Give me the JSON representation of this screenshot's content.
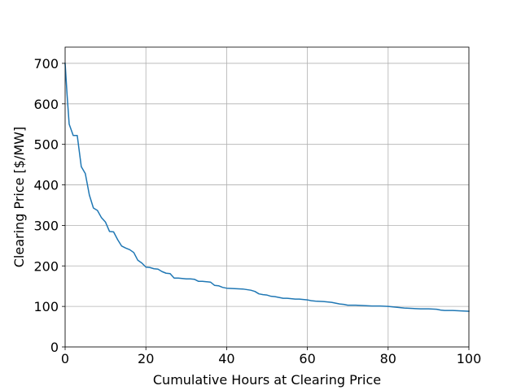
{
  "chart_data": {
    "type": "line",
    "title": "",
    "xlabel": "Cumulative Hours at Clearing Price",
    "ylabel": "Clearing Price [$/MW]",
    "xlim": [
      0,
      100
    ],
    "ylim": [
      0,
      740
    ],
    "x_ticks": [
      0,
      20,
      40,
      60,
      80,
      100
    ],
    "y_ticks": [
      0,
      100,
      200,
      300,
      400,
      500,
      600,
      700
    ],
    "grid": true,
    "legend": "none",
    "series": [
      {
        "color": "#1f77b4",
        "x": [
          0,
          0.5,
          1,
          2,
          3,
          4,
          5,
          6,
          7,
          8,
          9,
          10,
          11,
          12,
          13,
          14,
          15,
          16,
          17,
          18,
          19,
          20,
          21,
          22,
          23,
          24,
          25,
          26,
          27,
          28,
          29,
          30,
          31,
          32,
          33,
          34,
          35,
          36,
          37,
          38,
          39,
          40,
          42,
          44,
          46,
          47,
          48,
          49,
          50,
          51,
          52,
          53,
          54,
          55,
          56,
          57,
          58,
          59,
          60,
          61,
          62,
          64,
          66,
          67,
          68,
          69,
          70,
          72,
          74,
          76,
          78,
          80,
          82,
          84,
          86,
          88,
          90,
          92,
          93,
          94,
          96,
          98,
          100
        ],
        "y": [
          700,
          620,
          550,
          522,
          522,
          445,
          428,
          375,
          343,
          337,
          319,
          308,
          285,
          284,
          265,
          249,
          244,
          240,
          233,
          214,
          207,
          197,
          196,
          193,
          192,
          186,
          182,
          181,
          170,
          170,
          169,
          168,
          168,
          167,
          162,
          162,
          161,
          160,
          152,
          151,
          147,
          145,
          144,
          143,
          140,
          137,
          131,
          129,
          128,
          125,
          124,
          122,
          120,
          120,
          119,
          118,
          118,
          117,
          116,
          114,
          113,
          112,
          110,
          108,
          106,
          105,
          103,
          103,
          102,
          101,
          101,
          100,
          98,
          96,
          95,
          94,
          94,
          93,
          91,
          90,
          90,
          89,
          88
        ]
      }
    ]
  }
}
